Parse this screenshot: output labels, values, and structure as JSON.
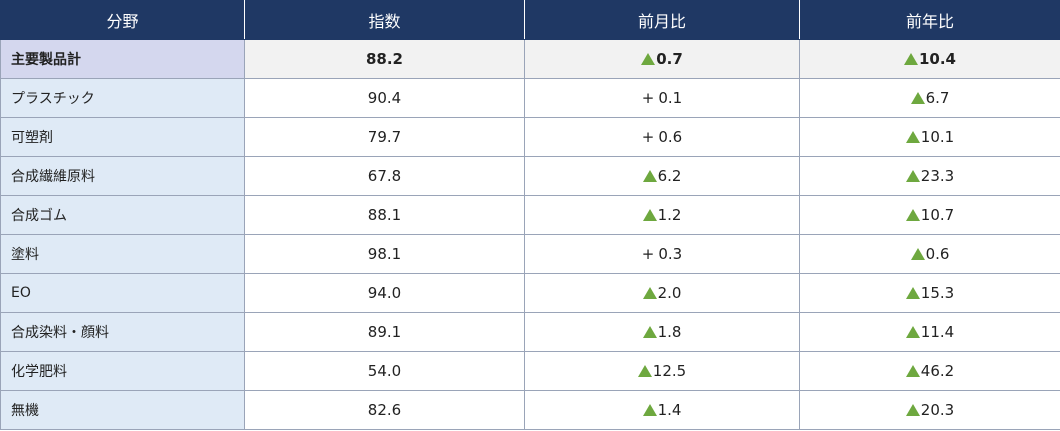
{
  "headers": [
    "分野",
    "指数",
    "前月比",
    "前年比"
  ],
  "rows": [
    {
      "name": "主要製品計",
      "index": "88.2",
      "mom_sign": "▲",
      "mom": "0.7",
      "yoy_sign": "▲",
      "yoy": "10.4",
      "total": true
    },
    {
      "name": "プラスチック",
      "index": "90.4",
      "mom_sign": "+",
      "mom": "0.1",
      "yoy_sign": "▲",
      "yoy": "6.7"
    },
    {
      "name": "可塑剤",
      "index": "79.7",
      "mom_sign": "+",
      "mom": "0.6",
      "yoy_sign": "▲",
      "yoy": "10.1"
    },
    {
      "name": "合成繊維原料",
      "index": "67.8",
      "mom_sign": "▲",
      "mom": "6.2",
      "yoy_sign": "▲",
      "yoy": "23.3"
    },
    {
      "name": "合成ゴム",
      "index": "88.1",
      "mom_sign": "▲",
      "mom": "1.2",
      "yoy_sign": "▲",
      "yoy": "10.7"
    },
    {
      "name": "塗料",
      "index": "98.1",
      "mom_sign": "+",
      "mom": "0.3",
      "yoy_sign": "▲",
      "yoy": "0.6"
    },
    {
      "name": "EO",
      "index": "94.0",
      "mom_sign": "▲",
      "mom": "2.0",
      "yoy_sign": "▲",
      "yoy": "15.3"
    },
    {
      "name": "合成染料・顔料",
      "index": "89.1",
      "mom_sign": "▲",
      "mom": "1.8",
      "yoy_sign": "▲",
      "yoy": "11.4"
    },
    {
      "name": "化学肥料",
      "index": "54.0",
      "mom_sign": "▲",
      "mom": "12.5",
      "yoy_sign": "▲",
      "yoy": "46.2"
    },
    {
      "name": "無機",
      "index": "82.6",
      "mom_sign": "▲",
      "mom": "1.4",
      "yoy_sign": "▲",
      "yoy": "20.3"
    }
  ],
  "colors": {
    "header_bg": "#1f3864",
    "name_col_bg": "#dfeaf6",
    "total_name_bg": "#d4d7ee",
    "total_row_bg": "#f2f2f2",
    "triangle": "#6ea83f"
  },
  "icons": {
    "decrease_marker": "green-up-triangle-icon"
  }
}
